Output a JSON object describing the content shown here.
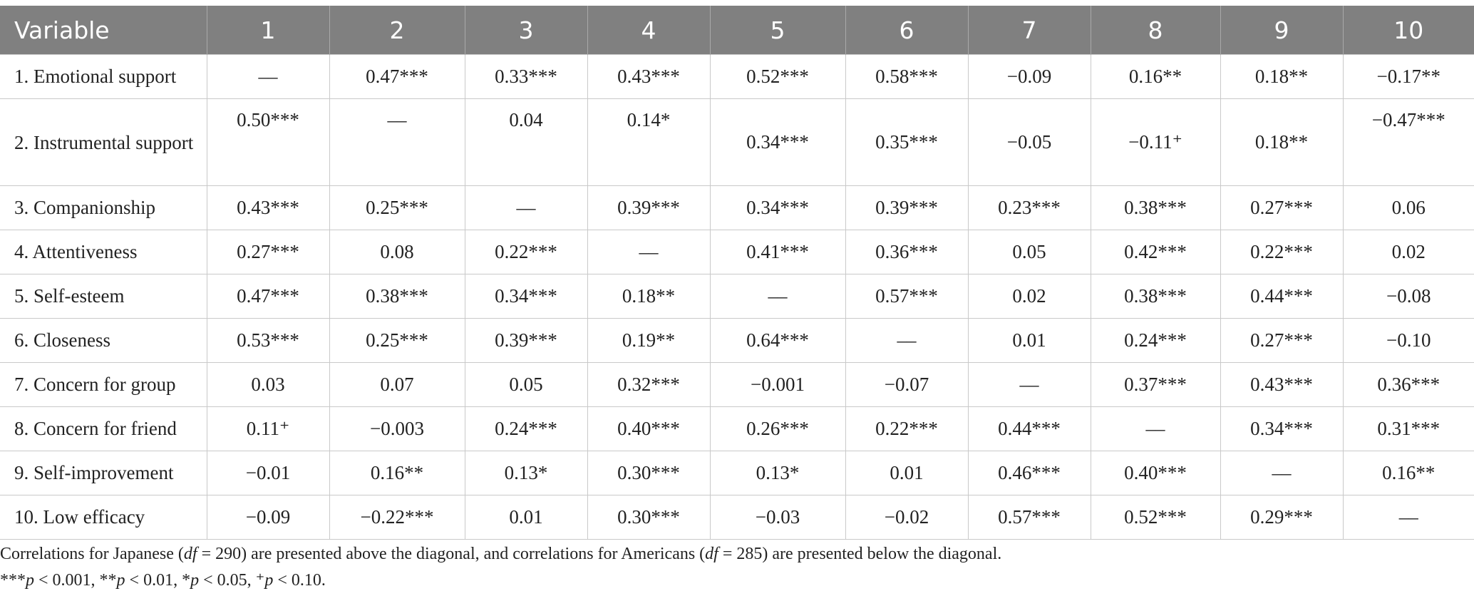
{
  "table": {
    "headers": [
      "Variable",
      "1",
      "2",
      "3",
      "4",
      "5",
      "6",
      "7",
      "8",
      "9",
      "10"
    ],
    "rows": [
      {
        "label": "1. Emotional support",
        "cells": [
          "––",
          "0.47***",
          "0.33***",
          "0.43***",
          "0.52***",
          "0.58***",
          "−0.09",
          "0.16**",
          "0.18**",
          "−0.17**"
        ]
      },
      {
        "label": "2. Instrumental support",
        "cells": [
          "0.50***",
          "––",
          "0.04",
          "0.14*",
          "0.34***",
          "0.35***",
          "−0.05",
          "−0.11⁺",
          "0.18**",
          "−0.47***"
        ]
      },
      {
        "label": "3. Companionship",
        "cells": [
          "0.43***",
          "0.25***",
          "––",
          "0.39***",
          "0.34***",
          "0.39***",
          "0.23***",
          "0.38***",
          "0.27***",
          "0.06"
        ]
      },
      {
        "label": "4. Attentiveness",
        "cells": [
          "0.27***",
          "0.08",
          "0.22***",
          "––",
          "0.41***",
          "0.36***",
          "0.05",
          "0.42***",
          "0.22***",
          "0.02"
        ]
      },
      {
        "label": "5. Self-esteem",
        "cells": [
          "0.47***",
          "0.38***",
          "0.34***",
          "0.18**",
          "––",
          "0.57***",
          "0.02",
          "0.38***",
          "0.44***",
          "−0.08"
        ]
      },
      {
        "label": "6. Closeness",
        "cells": [
          "0.53***",
          "0.25***",
          "0.39***",
          "0.19**",
          "0.64***",
          "––",
          "0.01",
          "0.24***",
          "0.27***",
          "−0.10"
        ]
      },
      {
        "label": "7. Concern for group",
        "cells": [
          "0.03",
          "0.07",
          "0.05",
          "0.32***",
          "−0.001",
          "−0.07",
          "––",
          "0.37***",
          "0.43***",
          "0.36***"
        ]
      },
      {
        "label": "8. Concern for friend",
        "cells": [
          "0.11⁺",
          "−0.003",
          "0.24***",
          "0.40***",
          "0.26***",
          "0.22***",
          "0.44***",
          "––",
          "0.34***",
          "0.31***"
        ]
      },
      {
        "label": "9. Self-improvement",
        "cells": [
          "−0.01",
          "0.16**",
          "0.13*",
          "0.30***",
          "0.13*",
          "0.01",
          "0.46***",
          "0.40***",
          "––",
          "0.16**"
        ]
      },
      {
        "label": "10. Low efficacy",
        "cells": [
          "−0.09",
          "−0.22***",
          "0.01",
          "0.30***",
          "−0.03",
          "−0.02",
          "0.57***",
          "0.52***",
          "0.29***",
          "––"
        ]
      }
    ]
  },
  "notes": {
    "line1_a": "Correlations for Japanese (",
    "line1_df1": "df",
    "line1_b": " = 290) are presented above the diagonal, and correlations for Americans (",
    "line1_df2": "df",
    "line1_c": " = 285) are presented below the diagonal.",
    "line2": [
      {
        "prefix": "***",
        "p": "p",
        "rest": " < 0.001, "
      },
      {
        "prefix": "**",
        "p": "p",
        "rest": " < 0.01, "
      },
      {
        "prefix": "*",
        "p": "p",
        "rest": " < 0.05, "
      },
      {
        "prefix": "⁺",
        "p": "p",
        "rest": " < 0.10."
      }
    ]
  }
}
